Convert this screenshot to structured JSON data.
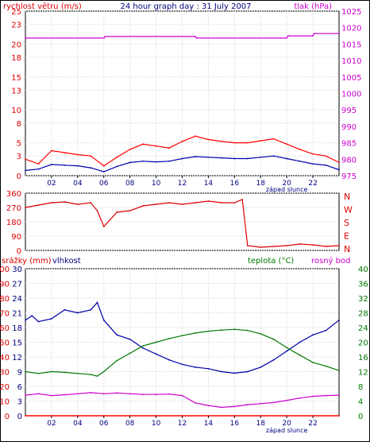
{
  "chart_data": [
    {
      "type": "line",
      "title": "24 hour graph day : 31 July 2007",
      "ylabel_left": "rychlost větru (m/s)",
      "ylabel_right": "tlak (hPa)",
      "annotation": "západ slunce",
      "left_axis": {
        "ticks": [
          0,
          3,
          5,
          8,
          10,
          13,
          15,
          18,
          20,
          23,
          25
        ],
        "ylim": [
          0,
          25
        ]
      },
      "right_axis": {
        "ticks": [
          975,
          980,
          985,
          990,
          995,
          1000,
          1005,
          1010,
          1015,
          1020,
          1025
        ],
        "ylim": [
          975,
          1025
        ]
      },
      "x_ticks": [
        "02",
        "04",
        "06",
        "08",
        "10",
        "12",
        "14",
        "16",
        "18",
        "20",
        "22"
      ],
      "x_range": [
        0,
        24
      ],
      "sunset_hour": 20.0,
      "colors": {
        "gust": "#ff0000",
        "wind": "#0000aa",
        "pressure": "#cc00cc",
        "axis_left": "#dd0000",
        "axis_right": "#cc00cc",
        "title": "#000080"
      },
      "series": [
        {
          "id": "gust",
          "x": [
            0,
            1,
            2,
            3,
            4,
            5,
            6,
            7,
            8,
            9,
            10,
            11,
            12,
            13,
            14,
            15,
            16,
            17,
            18,
            19,
            20,
            21,
            22,
            23,
            24
          ],
          "values": [
            2.5,
            1.8,
            3.8,
            3.5,
            3.2,
            3.0,
            1.5,
            2.8,
            4.0,
            4.8,
            4.5,
            4.2,
            5.2,
            6.0,
            5.5,
            5.2,
            5.0,
            5.0,
            5.3,
            5.6,
            4.8,
            4.0,
            3.3,
            3.0,
            2.0
          ]
        },
        {
          "id": "wind",
          "x": [
            0,
            1,
            2,
            3,
            4,
            5,
            6,
            7,
            8,
            9,
            10,
            11,
            12,
            13,
            14,
            15,
            16,
            17,
            18,
            19,
            20,
            21,
            22,
            23,
            24
          ],
          "values": [
            0.8,
            1.0,
            1.7,
            1.6,
            1.5,
            1.2,
            0.6,
            1.4,
            2.0,
            2.2,
            2.1,
            2.2,
            2.6,
            2.9,
            2.8,
            2.7,
            2.6,
            2.6,
            2.8,
            3.0,
            2.6,
            2.2,
            1.8,
            1.6,
            0.9
          ]
        },
        {
          "id": "pressure",
          "x": [
            0,
            6,
            6.1,
            13,
            13.1,
            20,
            20.1,
            22,
            22.1,
            24
          ],
          "values": [
            1016.8,
            1016.8,
            1017.3,
            1017.3,
            1016.8,
            1016.8,
            1017.5,
            1017.5,
            1018.2,
            1018.2
          ]
        }
      ]
    },
    {
      "type": "line",
      "left_axis": {
        "ticks": [
          0,
          90,
          180,
          270,
          360
        ],
        "ylim": [
          0,
          360
        ]
      },
      "right_axis_labels": [
        "N",
        "W",
        "S",
        "E",
        "N"
      ],
      "x_range": [
        0,
        24
      ],
      "colors": {
        "direction": "#dd0000",
        "axis": "#dd0000"
      },
      "series": [
        {
          "id": "direction",
          "x": [
            0,
            1,
            2,
            3,
            4,
            5,
            5.5,
            6,
            7,
            8,
            9,
            10,
            11,
            12,
            13,
            14,
            15,
            16,
            16.6,
            17,
            18,
            19,
            20,
            21,
            22,
            23,
            24
          ],
          "values": [
            270,
            285,
            300,
            305,
            290,
            300,
            250,
            150,
            240,
            250,
            280,
            290,
            300,
            290,
            300,
            310,
            300,
            300,
            320,
            30,
            20,
            25,
            30,
            40,
            35,
            25,
            30
          ]
        }
      ]
    },
    {
      "type": "line",
      "legend": [
        "srážky (mm)",
        "vlhkost",
        "teplota (°C)",
        "rosný bod"
      ],
      "annotation": "západ slunce",
      "axes": [
        {
          "name": "srážky (mm)",
          "ticks": [
            0,
            10,
            20,
            30,
            40,
            50,
            60,
            70,
            80,
            90,
            100
          ],
          "ylim": [
            0,
            100
          ]
        },
        {
          "name": "vlhkost",
          "ticks": [
            0,
            3,
            6,
            9,
            12,
            15,
            18,
            21,
            24,
            27,
            30
          ],
          "ylim": [
            0,
            30
          ]
        },
        {
          "name": "teplota (°C)",
          "ticks": [
            0,
            4,
            8,
            12,
            16,
            20,
            24,
            28,
            32,
            36,
            40
          ],
          "ylim": [
            0,
            40
          ]
        }
      ],
      "x_ticks": [
        "02",
        "04",
        "06",
        "08",
        "10",
        "12",
        "14",
        "16",
        "18",
        "20",
        "22"
      ],
      "x_range": [
        0,
        24
      ],
      "sunset_hour": 20.0,
      "colors": {
        "humidity": "#0000aa",
        "temperature": "#007700",
        "dewpoint": "#cc00cc",
        "rain": "#ff0000",
        "axis_rain": "#dd0000",
        "axis_humidity": "#000080",
        "axis_temp": "#007700",
        "axis_dew": "#cc00cc"
      },
      "series": [
        {
          "id": "humidity",
          "scale": "srážky (mm)",
          "x": [
            0,
            0.5,
            1,
            2,
            3,
            4,
            5,
            5.5,
            6,
            7,
            8,
            9,
            10,
            11,
            12,
            13,
            14,
            15,
            16,
            17,
            18,
            19,
            20,
            21,
            22,
            23,
            24
          ],
          "values": [
            65,
            68,
            64,
            66,
            72,
            70,
            72,
            77,
            65,
            55,
            52,
            46,
            42,
            38,
            35,
            33,
            32,
            30,
            29,
            30,
            33,
            38,
            44,
            50,
            55,
            58,
            65
          ]
        },
        {
          "id": "temperature",
          "scale": "teplota (°C)",
          "x": [
            0,
            1,
            2,
            3,
            4,
            5,
            5.5,
            6,
            7,
            8,
            9,
            10,
            11,
            12,
            13,
            14,
            15,
            16,
            17,
            18,
            19,
            20,
            21,
            22,
            23,
            24
          ],
          "values": [
            12,
            11.5,
            12,
            11.8,
            11.5,
            11.2,
            10.8,
            12,
            15,
            17,
            19,
            20,
            21,
            21.8,
            22.5,
            23,
            23.3,
            23.5,
            23.2,
            22.3,
            20.8,
            18.5,
            16.5,
            14.5,
            13.5,
            12.3
          ]
        },
        {
          "id": "dewpoint",
          "scale": "teplota (°C)",
          "x": [
            0,
            1,
            2,
            3,
            4,
            5,
            6,
            7,
            8,
            9,
            10,
            11,
            12,
            13,
            14,
            15,
            16,
            17,
            18,
            19,
            20,
            21,
            22,
            23,
            24
          ],
          "values": [
            5.6,
            6.0,
            5.5,
            5.7,
            6.0,
            6.3,
            6.0,
            6.2,
            6.0,
            5.8,
            5.8,
            5.9,
            5.5,
            3.5,
            2.8,
            2.3,
            2.5,
            3.0,
            3.3,
            3.6,
            4.2,
            4.8,
            5.3,
            5.5,
            5.6
          ]
        },
        {
          "id": "rain",
          "scale": "srážky (mm)",
          "x": [
            0,
            24
          ],
          "values": [
            0,
            0
          ]
        }
      ]
    }
  ]
}
